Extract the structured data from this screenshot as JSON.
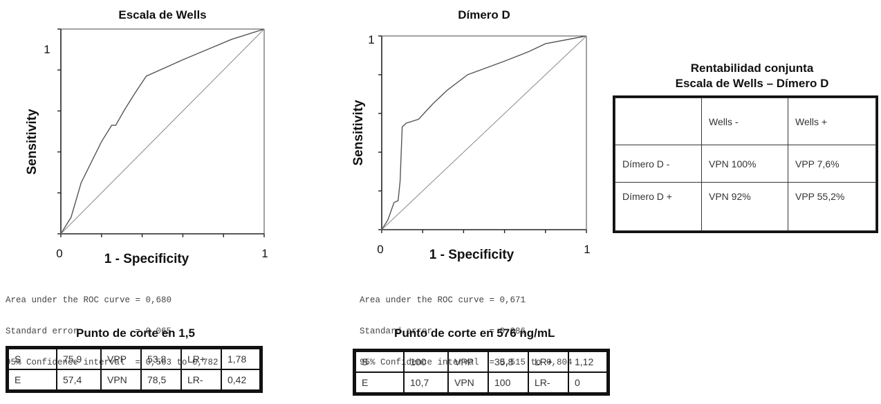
{
  "chart_data": [
    {
      "type": "line",
      "title": "Escala de  Wells",
      "xlabel": "1 - Specificity",
      "ylabel": "Sensitivity",
      "xlim": [
        0,
        1
      ],
      "ylim": [
        0,
        1
      ],
      "x_tick_labels": [
        "0",
        "1"
      ],
      "y_tick_labels": [
        "1"
      ],
      "series": [
        {
          "x": [
            0.0,
            0.05,
            0.1,
            0.15,
            0.2,
            0.25,
            0.27,
            0.31,
            0.36,
            0.42,
            0.6,
            0.72,
            0.84,
            1.0
          ],
          "y": [
            0.0,
            0.08,
            0.25,
            0.35,
            0.45,
            0.53,
            0.53,
            0.6,
            0.68,
            0.77,
            0.85,
            0.9,
            0.95,
            1.0
          ]
        },
        {
          "x": [
            0,
            1
          ],
          "y": [
            0,
            1
          ]
        }
      ],
      "stats": [
        "Area under the ROC curve = 0,680",
        "Standard error           = 0,065",
        "95% Confidence interval  = 0,563 to 0,782"
      ]
    },
    {
      "type": "line",
      "title": "Dímero D",
      "xlabel": "1 - Specificity",
      "ylabel": "Sensitivity",
      "xlim": [
        0,
        1
      ],
      "ylim": [
        0,
        1
      ],
      "x_tick_labels": [
        "0",
        "1"
      ],
      "y_tick_labels": [
        "1"
      ],
      "series": [
        {
          "x": [
            0.0,
            0.03,
            0.06,
            0.08,
            0.09,
            0.1,
            0.12,
            0.18,
            0.25,
            0.32,
            0.42,
            0.6,
            0.72,
            0.8,
            1.0
          ],
          "y": [
            0.0,
            0.05,
            0.14,
            0.15,
            0.25,
            0.53,
            0.55,
            0.57,
            0.65,
            0.72,
            0.8,
            0.87,
            0.92,
            0.96,
            1.0
          ]
        },
        {
          "x": [
            0,
            1
          ],
          "y": [
            0,
            1
          ]
        }
      ],
      "stats": [
        "Area under the ROC curve = 0,671",
        "Standard error           = 0,086",
        "95% Confidence interval  = 0,515 to 0,804"
      ]
    }
  ],
  "cut_tables": [
    {
      "title": "Punto de corte en 1,5",
      "rows": [
        [
          "S",
          "75,9",
          "VPP",
          "53,8",
          "LR+",
          "1,78"
        ],
        [
          "E",
          "57,4",
          "VPN",
          "78,5",
          "LR-",
          "0,42"
        ]
      ]
    },
    {
      "title": "Punto de corte en 576 ng/mL",
      "rows": [
        [
          "S",
          "100",
          "VPP",
          "35,8",
          "LR+",
          "1,12"
        ],
        [
          "E",
          "10,7",
          "VPN",
          "100",
          "LR-",
          "0"
        ]
      ]
    }
  ],
  "joint": {
    "title_line1": "Rentabilidad conjunta",
    "title_line2": "Escala de Wells – Dímero D",
    "header": [
      "",
      "Wells -",
      "Wells +"
    ],
    "rows": [
      [
        "Dímero D -",
        "VPN 100%",
        "VPP 7,6%"
      ],
      [
        "Dímero D +",
        "VPN 92%",
        "VPP 55,2%"
      ]
    ]
  }
}
